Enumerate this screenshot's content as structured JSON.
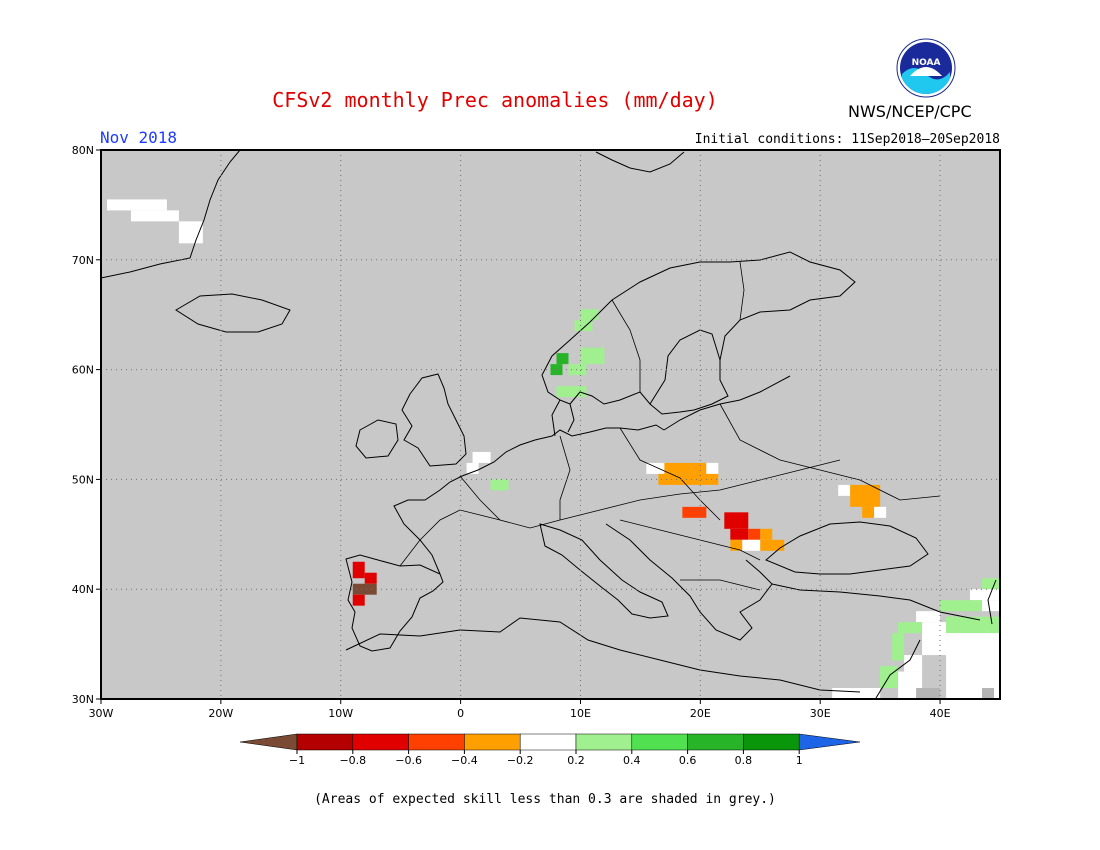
{
  "title": "CFSv2 monthly Prec anomalies (mm/day)",
  "month": "Nov 2018",
  "initial_conditions": "Initial conditions: 11Sep2018–20Sep2018",
  "agency": "NWS/NCEP/CPC",
  "logo_text": "NOAA",
  "note": "(Areas of expected skill less than 0.3 are shaded in grey.)",
  "map": {
    "lon_range": [
      -30,
      45
    ],
    "lat_range": [
      30,
      80
    ],
    "lon_ticks": [
      {
        "v": -30,
        "l": "30W"
      },
      {
        "v": -20,
        "l": "20W"
      },
      {
        "v": -10,
        "l": "10W"
      },
      {
        "v": 0,
        "l": "0"
      },
      {
        "v": 10,
        "l": "10E"
      },
      {
        "v": 20,
        "l": "20E"
      },
      {
        "v": 30,
        "l": "30E"
      },
      {
        "v": 40,
        "l": "40E"
      }
    ],
    "lat_ticks": [
      {
        "v": 30,
        "l": "30N"
      },
      {
        "v": 40,
        "l": "40N"
      },
      {
        "v": 50,
        "l": "50N"
      },
      {
        "v": 60,
        "l": "60N"
      },
      {
        "v": 70,
        "l": "70N"
      },
      {
        "v": 80,
        "l": "80N"
      }
    ],
    "background_color": "#c8c8c8",
    "grid": "dotted"
  },
  "legend": {
    "labels": [
      "−1",
      "−0.8",
      "−0.6",
      "−0.4",
      "−0.2",
      "0.2",
      "0.4",
      "0.6",
      "0.8",
      "1"
    ],
    "low_color": "#7a4a34",
    "high_color": "#1e64e6",
    "colors": [
      "#b40000",
      "#e00000",
      "#ff4000",
      "#ffa000",
      "#ffffff",
      "#a0f090",
      "#50e050",
      "#28b428",
      "#0a960a"
    ]
  },
  "anomaly_cells": [
    {
      "lon0": -29.5,
      "lon1": -24.5,
      "lat0": 74.5,
      "lat1": 75.5,
      "v": 0
    },
    {
      "lon0": -27.5,
      "lon1": -23.5,
      "lat0": 73.5,
      "lat1": 74.5,
      "v": 0
    },
    {
      "lon0": -23.5,
      "lon1": -21.5,
      "lat0": 71.5,
      "lat1": 73.5,
      "v": 0
    },
    {
      "lon0": 1.0,
      "lon1": 2.5,
      "lat0": 51.5,
      "lat1": 52.5,
      "v": 0
    },
    {
      "lon0": 0.5,
      "lon1": 1.5,
      "lat0": 50.5,
      "lat1": 51.5,
      "v": 0
    },
    {
      "lon0": 2.5,
      "lon1": 4.0,
      "lat0": 49.0,
      "lat1": 50.0,
      "v": 0.3
    },
    {
      "lon0": 10.0,
      "lon1": 11.5,
      "lat0": 64.5,
      "lat1": 65.5,
      "v": 0.3
    },
    {
      "lon0": 9.5,
      "lon1": 11.0,
      "lat0": 63.5,
      "lat1": 64.5,
      "v": 0.3
    },
    {
      "lon0": 10.0,
      "lon1": 12.0,
      "lat0": 60.5,
      "lat1": 62.0,
      "v": 0.3
    },
    {
      "lon0": 8.0,
      "lon1": 9.0,
      "lat0": 60.5,
      "lat1": 61.5,
      "v": 0.7
    },
    {
      "lon0": 7.5,
      "lon1": 8.5,
      "lat0": 59.5,
      "lat1": 60.5,
      "v": 0.7
    },
    {
      "lon0": 9.0,
      "lon1": 10.5,
      "lat0": 59.5,
      "lat1": 60.5,
      "v": 0.3
    },
    {
      "lon0": 8.0,
      "lon1": 10.5,
      "lat0": 57.5,
      "lat1": 58.5,
      "v": 0.3
    },
    {
      "lon0": 15.5,
      "lon1": 17.5,
      "lat0": 50.5,
      "lat1": 51.5,
      "v": 0
    },
    {
      "lon0": 17.0,
      "lon1": 20.5,
      "lat0": 50.5,
      "lat1": 51.5,
      "v": -0.3
    },
    {
      "lon0": 20.5,
      "lon1": 21.5,
      "lat0": 50.5,
      "lat1": 51.5,
      "v": 0
    },
    {
      "lon0": 16.5,
      "lon1": 21.5,
      "lat0": 49.5,
      "lat1": 50.5,
      "v": -0.3
    },
    {
      "lon0": 18.5,
      "lon1": 20.5,
      "lat0": 46.5,
      "lat1": 47.5,
      "v": -0.5
    },
    {
      "lon0": 22.0,
      "lon1": 24.0,
      "lat0": 45.5,
      "lat1": 47.0,
      "v": -0.7
    },
    {
      "lon0": 22.5,
      "lon1": 24.0,
      "lat0": 44.5,
      "lat1": 45.5,
      "v": -0.7
    },
    {
      "lon0": 24.0,
      "lon1": 25.0,
      "lat0": 44.5,
      "lat1": 45.5,
      "v": -0.5
    },
    {
      "lon0": 25.0,
      "lon1": 26.0,
      "lat0": 44.5,
      "lat1": 45.5,
      "v": -0.3
    },
    {
      "lon0": 22.5,
      "lon1": 23.5,
      "lat0": 43.5,
      "lat1": 44.5,
      "v": -0.3
    },
    {
      "lon0": 23.5,
      "lon1": 25.0,
      "lat0": 43.5,
      "lat1": 44.5,
      "v": 0
    },
    {
      "lon0": 25.0,
      "lon1": 27.0,
      "lat0": 43.5,
      "lat1": 44.5,
      "v": -0.3
    },
    {
      "lon0": 31.5,
      "lon1": 32.5,
      "lat0": 48.5,
      "lat1": 49.5,
      "v": 0
    },
    {
      "lon0": 32.5,
      "lon1": 35.0,
      "lat0": 47.5,
      "lat1": 49.5,
      "v": -0.3
    },
    {
      "lon0": 33.5,
      "lon1": 34.5,
      "lat0": 46.5,
      "lat1": 47.5,
      "v": -0.3
    },
    {
      "lon0": 34.5,
      "lon1": 35.5,
      "lat0": 46.5,
      "lat1": 47.5,
      "v": 0
    },
    {
      "lon0": -9.0,
      "lon1": -8.0,
      "lat0": 41.0,
      "lat1": 42.5,
      "v": -0.7
    },
    {
      "lon0": -8.0,
      "lon1": -7.0,
      "lat0": 40.5,
      "lat1": 41.5,
      "v": -0.7
    },
    {
      "lon0": -9.0,
      "lon1": -7.0,
      "lat0": 39.5,
      "lat1": 40.5,
      "v": -1.2
    },
    {
      "lon0": -9.0,
      "lon1": -8.0,
      "lat0": 38.5,
      "lat1": 39.5,
      "v": -0.7
    },
    {
      "lon0": 43.5,
      "lon1": 45.0,
      "lat0": 40.0,
      "lat1": 41.0,
      "v": 0.3
    },
    {
      "lon0": 42.5,
      "lon1": 45.0,
      "lat0": 39.0,
      "lat1": 40.0,
      "v": 0
    },
    {
      "lon0": 40.0,
      "lon1": 43.5,
      "lat0": 38.0,
      "lat1": 39.0,
      "v": 0.3
    },
    {
      "lon0": 43.5,
      "lon1": 45.0,
      "lat0": 38.0,
      "lat1": 39.0,
      "v": 0
    },
    {
      "lon0": 38.0,
      "lon1": 40.0,
      "lat0": 37.0,
      "lat1": 38.0,
      "v": 0
    },
    {
      "lon0": 40.5,
      "lon1": 45.0,
      "lat0": 36.0,
      "lat1": 37.5,
      "v": 0.3
    },
    {
      "lon0": 36.5,
      "lon1": 38.5,
      "lat0": 36.0,
      "lat1": 37.0,
      "v": 0.3
    },
    {
      "lon0": 38.5,
      "lon1": 40.5,
      "lat0": 34.0,
      "lat1": 37.0,
      "v": 0
    },
    {
      "lon0": 40.5,
      "lon1": 45.0,
      "lat0": 30.0,
      "lat1": 36.0,
      "v": 0
    },
    {
      "lon0": 36.0,
      "lon1": 37.0,
      "lat0": 33.5,
      "lat1": 36.0,
      "v": 0.3
    },
    {
      "lon0": 37.0,
      "lon1": 38.5,
      "lat0": 32.5,
      "lat1": 34.0,
      "v": 0
    },
    {
      "lon0": 35.0,
      "lon1": 36.5,
      "lat0": 31.0,
      "lat1": 33.0,
      "v": 0.3
    },
    {
      "lon0": 36.5,
      "lon1": 38.5,
      "lat0": 30.0,
      "lat1": 32.5,
      "v": 0
    },
    {
      "lon0": 31.0,
      "lon1": 35.0,
      "lat0": 30.0,
      "lat1": 31.0,
      "v": 0
    },
    {
      "lon0": 38.0,
      "lon1": 40.0,
      "lat0": 30.0,
      "lat1": 31.0,
      "v": "grey"
    },
    {
      "lon0": 43.5,
      "lon1": 44.5,
      "lat0": 30.0,
      "lat1": 31.0,
      "v": "grey"
    }
  ]
}
